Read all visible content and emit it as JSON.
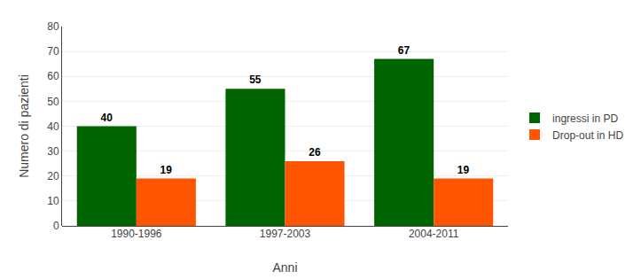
{
  "chart_data": {
    "type": "bar",
    "categories": [
      "1990-1996",
      "1997-2003",
      "2004-2011"
    ],
    "series": [
      {
        "name": "ingressi in PD",
        "color": "#006400",
        "values": [
          40,
          55,
          67
        ]
      },
      {
        "name": "Drop-out in HD",
        "color": "#FF5500",
        "values": [
          19,
          26,
          19
        ]
      }
    ],
    "xlabel": "Anni",
    "ylabel": "Numero di pazienti",
    "ylim": [
      0,
      80
    ],
    "yticks": [
      0,
      10,
      20,
      30,
      40,
      50,
      60,
      70,
      80
    ],
    "grid": true,
    "data_labels": true,
    "legend": "right"
  }
}
